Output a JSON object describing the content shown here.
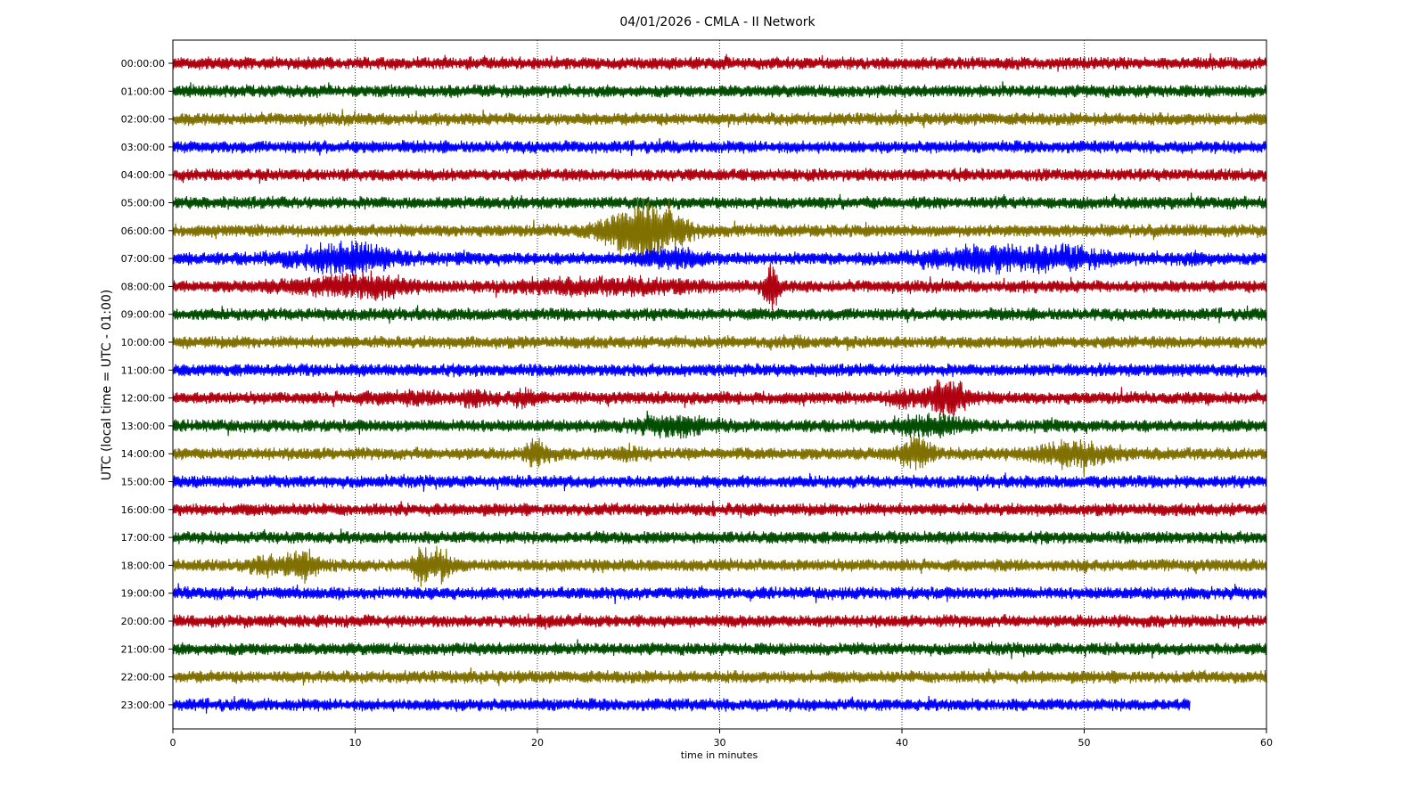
{
  "chart_data": {
    "type": "line",
    "title": "04/01/2026 - CMLA - II Network",
    "xlabel": "time in minutes",
    "ylabel": "UTC (local time = UTC - 01:00)",
    "xlim": [
      0,
      60
    ],
    "x_ticks": [
      0,
      10,
      20,
      30,
      40,
      50,
      60
    ],
    "grid": "vertical dotted at x ticks",
    "colors": [
      "#b00010",
      "#004d00",
      "#807000",
      "#0000ff"
    ],
    "rows": [
      {
        "label": "00:00:00",
        "end": 60,
        "events": []
      },
      {
        "label": "01:00:00",
        "end": 60,
        "events": []
      },
      {
        "label": "02:00:00",
        "end": 60,
        "events": []
      },
      {
        "label": "03:00:00",
        "end": 60,
        "events": []
      },
      {
        "label": "04:00:00",
        "end": 60,
        "events": []
      },
      {
        "label": "05:00:00",
        "end": 60,
        "events": []
      },
      {
        "label": "06:00:00",
        "end": 60,
        "events": [
          [
            25,
            3,
            2.2
          ],
          [
            26.5,
            2.5,
            3.0
          ]
        ]
      },
      {
        "label": "07:00:00",
        "end": 60,
        "events": [
          [
            9.5,
            4,
            3.0
          ],
          [
            27.5,
            2.5,
            2.0
          ],
          [
            44.5,
            5,
            2.5
          ],
          [
            49.5,
            3,
            1.8
          ],
          [
            56,
            2,
            1.3
          ]
        ]
      },
      {
        "label": "08:00:00",
        "end": 60,
        "events": [
          [
            8,
            4,
            1.5
          ],
          [
            11,
            3,
            2.0
          ],
          [
            21,
            4,
            1.6
          ],
          [
            26,
            4,
            1.6
          ],
          [
            32.8,
            0.6,
            4.0
          ]
        ]
      },
      {
        "label": "09:00:00",
        "end": 60,
        "events": []
      },
      {
        "label": "10:00:00",
        "end": 60,
        "events": [
          [
            34,
            1,
            1.3
          ]
        ]
      },
      {
        "label": "11:00:00",
        "end": 60,
        "events": [
          [
            55,
            1,
            1.2
          ]
        ]
      },
      {
        "label": "12:00:00",
        "end": 60,
        "events": [
          [
            13,
            4,
            1.4
          ],
          [
            16.5,
            1,
            1.8
          ],
          [
            19.3,
            1,
            2.0
          ],
          [
            40,
            1,
            2.0
          ],
          [
            42.5,
            1.5,
            3.5
          ]
        ]
      },
      {
        "label": "13:00:00",
        "end": 60,
        "events": [
          [
            27.5,
            3,
            2.0
          ],
          [
            41.5,
            3,
            2.2
          ]
        ]
      },
      {
        "label": "14:00:00",
        "end": 60,
        "events": [
          [
            20,
            1,
            2.5
          ],
          [
            25,
            1,
            1.6
          ],
          [
            40.8,
            1.2,
            3.0
          ],
          [
            49.5,
            3,
            2.5
          ]
        ]
      },
      {
        "label": "15:00:00",
        "end": 60,
        "events": []
      },
      {
        "label": "16:00:00",
        "end": 60,
        "events": []
      },
      {
        "label": "17:00:00",
        "end": 60,
        "events": []
      },
      {
        "label": "18:00:00",
        "end": 60,
        "events": [
          [
            5,
            1,
            2.0
          ],
          [
            7,
            1.2,
            3.0
          ],
          [
            13.5,
            0.6,
            2.2
          ],
          [
            14.5,
            1.2,
            3.0
          ]
        ]
      },
      {
        "label": "19:00:00",
        "end": 60,
        "events": []
      },
      {
        "label": "20:00:00",
        "end": 60,
        "events": []
      },
      {
        "label": "21:00:00",
        "end": 60,
        "events": []
      },
      {
        "label": "22:00:00",
        "end": 60,
        "events": []
      },
      {
        "label": "23:00:00",
        "end": 55.8,
        "events": []
      }
    ]
  }
}
